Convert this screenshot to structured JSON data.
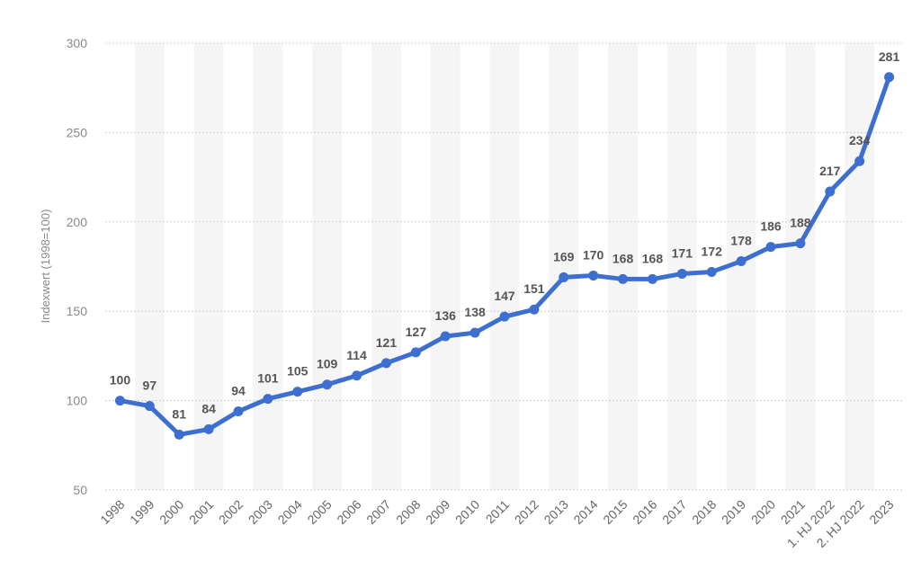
{
  "chart_data": {
    "type": "line",
    "title": "",
    "xlabel": "",
    "ylabel": "Indexwert (1998=100)",
    "ylim": [
      50,
      300
    ],
    "yticks": [
      50,
      100,
      150,
      200,
      250,
      300
    ],
    "grid": true,
    "categories": [
      "1998",
      "1999",
      "2000",
      "2001",
      "2002",
      "2003",
      "2004",
      "2005",
      "2006",
      "2007",
      "2008",
      "2009",
      "2010",
      "2011",
      "2012",
      "2013",
      "2014",
      "2015",
      "2016",
      "2017",
      "2018",
      "2019",
      "2020",
      "2021",
      "1. HJ 2022",
      "2. HJ 2022",
      "2023"
    ],
    "series": [
      {
        "values": [
          100,
          97,
          81,
          84,
          94,
          101,
          105,
          109,
          114,
          121,
          127,
          136,
          138,
          147,
          151,
          169,
          170,
          168,
          168,
          171,
          172,
          178,
          186,
          188,
          217,
          234,
          281
        ]
      }
    ],
    "colors": {
      "line": "#3d6fd1",
      "band": "#f5f5f5",
      "grid": "#cfcfcf"
    }
  }
}
